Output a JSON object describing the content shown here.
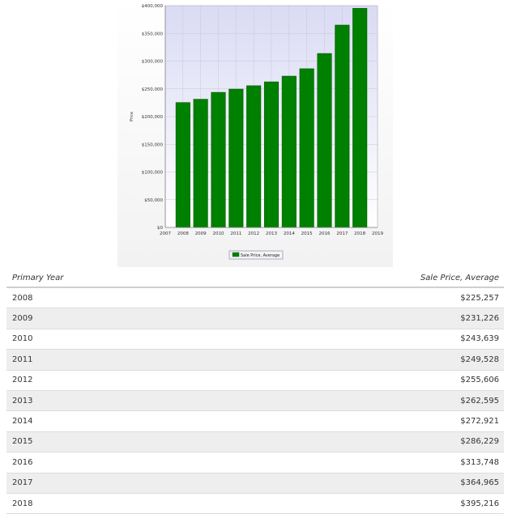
{
  "chart_data": {
    "type": "bar",
    "categories": [
      "2008",
      "2009",
      "2010",
      "2011",
      "2012",
      "2013",
      "2014",
      "2015",
      "2016",
      "2017",
      "2018"
    ],
    "x_ticks": [
      "2007",
      "2008",
      "2009",
      "2010",
      "2011",
      "2012",
      "2013",
      "2014",
      "2015",
      "2016",
      "2017",
      "2018",
      "2019"
    ],
    "values": [
      225257,
      231226,
      243639,
      249528,
      255606,
      262595,
      272921,
      286229,
      313748,
      364965,
      395216
    ],
    "ylabel": "Price",
    "ylim": [
      0,
      400000
    ],
    "y_ticks": [
      "$0",
      "$50,000",
      "$100,000",
      "$150,000",
      "$200,000",
      "$250,000",
      "$300,000",
      "$350,000",
      "$400,000"
    ],
    "series": [
      {
        "name": "Sale Price, Average"
      }
    ],
    "colors": {
      "bar": "#008000",
      "bar_edge": "#005a00",
      "plot_bg_top": "#dadbf4",
      "plot_bg_bottom": "#ffffff"
    },
    "grid": true,
    "legend_position": "bottom-center"
  },
  "table": {
    "headers": [
      "Primary Year",
      "Sale Price, Average"
    ],
    "rows": [
      [
        "2008",
        "$225,257"
      ],
      [
        "2009",
        "$231,226"
      ],
      [
        "2010",
        "$243,639"
      ],
      [
        "2011",
        "$249,528"
      ],
      [
        "2012",
        "$255,606"
      ],
      [
        "2013",
        "$262,595"
      ],
      [
        "2014",
        "$272,921"
      ],
      [
        "2015",
        "$286,229"
      ],
      [
        "2016",
        "$313,748"
      ],
      [
        "2017",
        "$364,965"
      ],
      [
        "2018",
        "$395,216"
      ]
    ]
  }
}
